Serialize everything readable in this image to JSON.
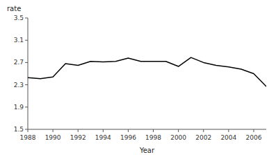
{
  "chart_data": {
    "type": "line",
    "x": [
      1988,
      1989,
      1990,
      1991,
      1992,
      1993,
      1994,
      1995,
      1996,
      1997,
      1998,
      1999,
      2000,
      2001,
      2002,
      2003,
      2004,
      2005,
      2006,
      2007
    ],
    "values": [
      2.43,
      2.41,
      2.44,
      2.68,
      2.65,
      2.72,
      2.71,
      2.72,
      2.78,
      2.72,
      2.72,
      2.72,
      2.63,
      2.79,
      2.7,
      2.65,
      2.62,
      2.58,
      2.5,
      2.27
    ],
    "color": "#000000",
    "xlabel": "Year",
    "ylabel": "rate",
    "xlim": [
      1988,
      2007
    ],
    "ylim": [
      1.5,
      3.5
    ],
    "xticks": [
      1988,
      1990,
      1992,
      1994,
      1996,
      1998,
      2000,
      2002,
      2004,
      2006
    ],
    "yticks": [
      1.5,
      1.9,
      2.3,
      2.7,
      3.1,
      3.5
    ],
    "grid": false
  }
}
